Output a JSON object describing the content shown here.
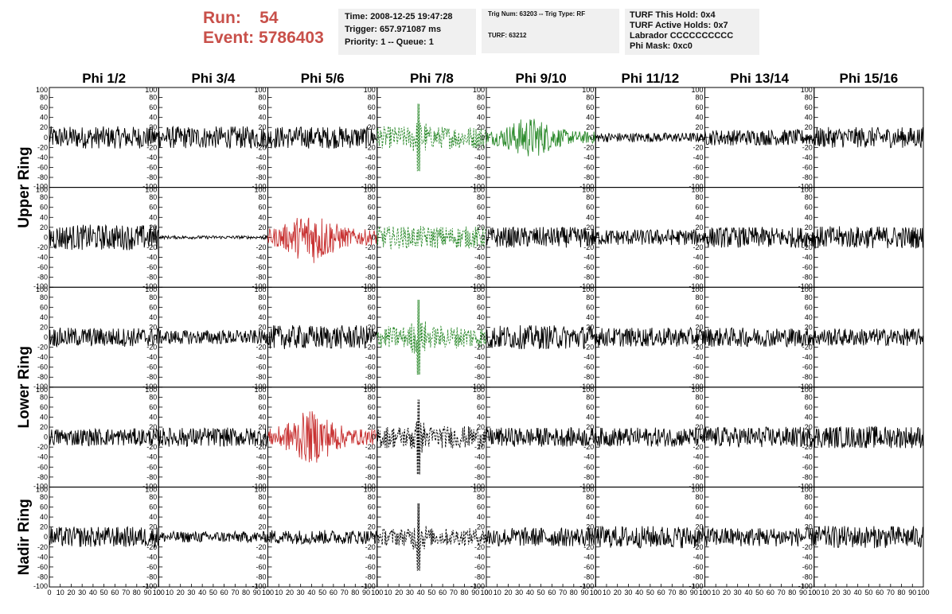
{
  "header": {
    "run_label": "Run:",
    "run_value": "54",
    "event_label": "Event:",
    "event_value": "5786403",
    "accent_color": "#c8504a"
  },
  "info_box_1": {
    "time": "Time: 2008-12-25 19:47:28",
    "trigger": "Trigger: 657.971087 ms",
    "priority": "Priority: 1 -- Queue: 1"
  },
  "info_box_2": {
    "trig": "Trig Num: 63203 -- Trig Type: RF",
    "turf": "TURF: 63212"
  },
  "info_box_3": {
    "this_hold": "TURF This Hold: 0x4",
    "active_holds": "TURF Active Holds: 0x7",
    "labrador": "Labrador CCCCCCCCCC",
    "phi_mask": "Phi Mask: 0xc0"
  },
  "chart_data": {
    "type": "line",
    "layout": "grid of 5 rows x 8 columns of waveform panels",
    "columns": [
      "Phi 1/2",
      "Phi 3/4",
      "Phi 5/6",
      "Phi 7/8",
      "Phi 9/10",
      "Phi 11/12",
      "Phi 13/14",
      "Phi 15/16"
    ],
    "ring_labels": [
      {
        "label": "Upper Ring",
        "rows": [
          0,
          1
        ]
      },
      {
        "label": "Lower Ring",
        "rows": [
          2,
          3
        ]
      },
      {
        "label": "Nadir Ring",
        "rows": [
          4
        ]
      }
    ],
    "x_ticks": [
      "0",
      "10",
      "20",
      "30",
      "40",
      "50",
      "60",
      "70",
      "80",
      "90",
      "100"
    ],
    "y_ticks": [
      "100",
      "80",
      "60",
      "40",
      "20",
      "0",
      "-20",
      "-40",
      "-60",
      "-80",
      "-100"
    ],
    "xlim": [
      0,
      100
    ],
    "ylim": [
      -100,
      100
    ],
    "colors": {
      "normal": "#000000",
      "green": "#2e8b2e",
      "red": "#c83232"
    },
    "panels": [
      [
        {
          "color": "normal",
          "amp": 14,
          "dashed": false
        },
        {
          "color": "normal",
          "amp": 14,
          "dashed": false
        },
        {
          "color": "normal",
          "amp": 14,
          "dashed": false
        },
        {
          "color": "green",
          "amp": 14,
          "dashed": true,
          "peak": 38,
          "peakAmp": 45
        },
        {
          "color": "green",
          "amp": 14,
          "dashed": false,
          "burst": true
        },
        {
          "color": "normal",
          "amp": 6,
          "dashed": false
        },
        {
          "color": "normal",
          "amp": 10,
          "dashed": false
        },
        {
          "color": "normal",
          "amp": 13,
          "dashed": false
        }
      ],
      [
        {
          "color": "normal",
          "amp": 16,
          "dashed": false
        },
        {
          "color": "normal",
          "amp": 2,
          "dashed": false
        },
        {
          "color": "red",
          "amp": 18,
          "dashed": false,
          "burst": true
        },
        {
          "color": "green",
          "amp": 14,
          "dashed": true
        },
        {
          "color": "normal",
          "amp": 13,
          "dashed": false
        },
        {
          "color": "normal",
          "amp": 10,
          "dashed": false
        },
        {
          "color": "normal",
          "amp": 13,
          "dashed": false
        },
        {
          "color": "normal",
          "amp": 14,
          "dashed": false
        }
      ],
      [
        {
          "color": "normal",
          "amp": 12,
          "dashed": false
        },
        {
          "color": "normal",
          "amp": 9,
          "dashed": false
        },
        {
          "color": "normal",
          "amp": 15,
          "dashed": false
        },
        {
          "color": "green",
          "amp": 14,
          "dashed": true,
          "peak": 38,
          "peakAmp": 50
        },
        {
          "color": "normal",
          "amp": 15,
          "dashed": false
        },
        {
          "color": "normal",
          "amp": 12,
          "dashed": false
        },
        {
          "color": "normal",
          "amp": 12,
          "dashed": false
        },
        {
          "color": "normal",
          "amp": 11,
          "dashed": false
        }
      ],
      [
        {
          "color": "normal",
          "amp": 11,
          "dashed": false
        },
        {
          "color": "normal",
          "amp": 12,
          "dashed": false
        },
        {
          "color": "red",
          "amp": 18,
          "dashed": false,
          "burst": true
        },
        {
          "color": "normal",
          "amp": 14,
          "dashed": true,
          "peak": 38,
          "peakAmp": 50
        },
        {
          "color": "normal",
          "amp": 12,
          "dashed": false
        },
        {
          "color": "normal",
          "amp": 12,
          "dashed": false
        },
        {
          "color": "normal",
          "amp": 13,
          "dashed": false
        },
        {
          "color": "normal",
          "amp": 14,
          "dashed": false
        }
      ],
      [
        {
          "color": "normal",
          "amp": 13,
          "dashed": false
        },
        {
          "color": "normal",
          "amp": 7,
          "dashed": false
        },
        {
          "color": "normal",
          "amp": 9,
          "dashed": false
        },
        {
          "color": "normal",
          "amp": 11,
          "dashed": true,
          "peak": 38,
          "peakAmp": 45
        },
        {
          "color": "normal",
          "amp": 12,
          "dashed": false
        },
        {
          "color": "normal",
          "amp": 14,
          "dashed": false
        },
        {
          "color": "normal",
          "amp": 12,
          "dashed": false
        },
        {
          "color": "normal",
          "amp": 14,
          "dashed": false
        }
      ]
    ]
  }
}
